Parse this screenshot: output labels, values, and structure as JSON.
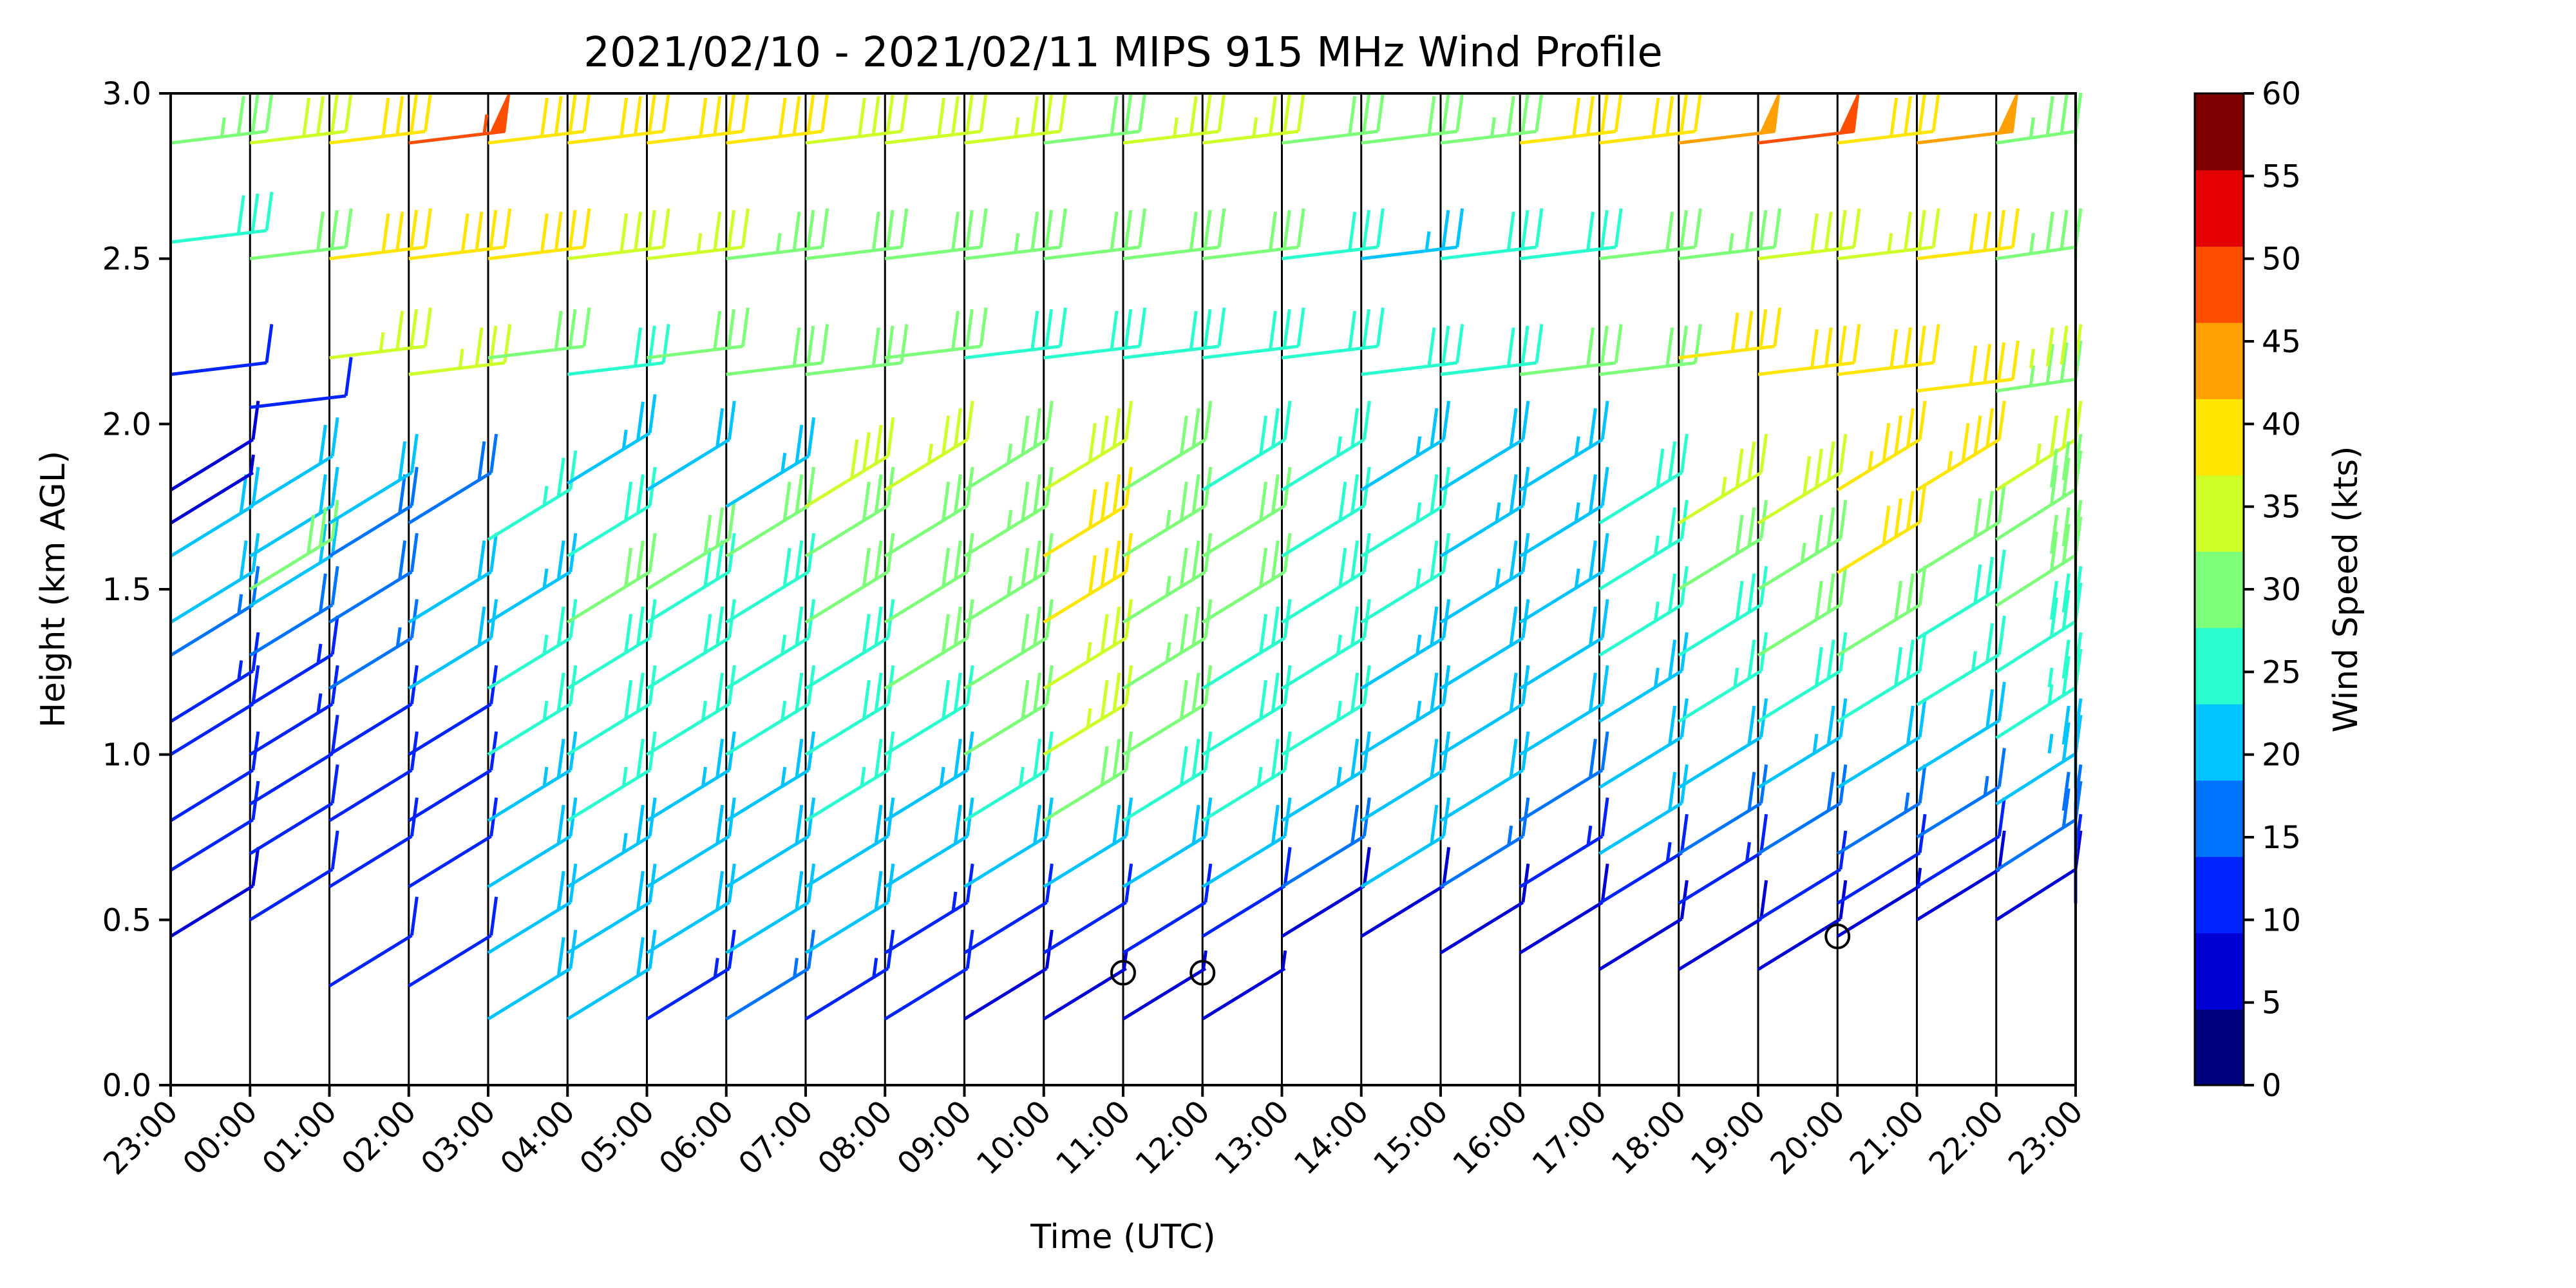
{
  "chart_data": {
    "type": "wind-barb-profile",
    "title": "2021/02/10 - 2021/02/11 MIPS 915 MHz Wind Profile",
    "xlabel": "Time (UTC)",
    "ylabel": "Height (km AGL)",
    "x_ticks": [
      "23:00",
      "00:00",
      "01:00",
      "02:00",
      "03:00",
      "04:00",
      "05:00",
      "06:00",
      "07:00",
      "08:00",
      "09:00",
      "10:00",
      "11:00",
      "12:00",
      "13:00",
      "14:00",
      "15:00",
      "16:00",
      "17:00",
      "18:00",
      "19:00",
      "20:00",
      "21:00",
      "22:00",
      "23:00"
    ],
    "y_ticks": [
      "0.0",
      "0.5",
      "1.0",
      "1.5",
      "2.0",
      "2.5",
      "3.0"
    ],
    "ylim": [
      0,
      3.0
    ],
    "grid": "vertical lines at each hour",
    "colorbar": {
      "label": "Wind Speed (kts)",
      "ticks": [
        "0",
        "5",
        "10",
        "15",
        "20",
        "25",
        "30",
        "35",
        "40",
        "45",
        "50",
        "55",
        "60"
      ],
      "range": [
        0,
        60
      ],
      "colors": [
        "#00007f",
        "#0000d4",
        "#0024ff",
        "#0074ff",
        "#00c4ff",
        "#29ffce",
        "#7dff7a",
        "#ceff29",
        "#ffe500",
        "#ff9f00",
        "#ff4e00",
        "#e40000",
        "#7f0000"
      ],
      "placement": "right"
    },
    "profiles": [
      {
        "time": "23:00",
        "levels": [
          [
            0.45,
            8
          ],
          [
            0.65,
            10
          ],
          [
            0.8,
            12
          ],
          [
            1.0,
            12
          ],
          [
            1.1,
            14
          ],
          [
            1.3,
            16
          ],
          [
            1.4,
            20
          ],
          [
            1.6,
            20
          ],
          [
            1.7,
            7
          ],
          [
            1.8,
            8
          ],
          [
            2.15,
            12
          ],
          [
            2.55,
            28
          ],
          [
            2.85,
            33
          ]
        ]
      },
      {
        "time": "00:00",
        "levels": [
          [
            0.5,
            10
          ],
          [
            0.7,
            12
          ],
          [
            0.85,
            12
          ],
          [
            1.0,
            14
          ],
          [
            1.15,
            14
          ],
          [
            1.3,
            18
          ],
          [
            1.45,
            20
          ],
          [
            1.6,
            20
          ],
          [
            1.75,
            22
          ],
          [
            1.5,
            30
          ],
          [
            2.05,
            12
          ],
          [
            2.5,
            30
          ],
          [
            2.85,
            38
          ]
        ]
      },
      {
        "time": "01:00",
        "levels": [
          [
            0.3,
            10
          ],
          [
            0.6,
            10
          ],
          [
            0.8,
            12
          ],
          [
            1.0,
            12
          ],
          [
            1.2,
            16
          ],
          [
            1.4,
            18
          ],
          [
            1.6,
            18
          ],
          [
            1.7,
            20
          ],
          [
            2.2,
            36
          ],
          [
            2.5,
            42
          ],
          [
            2.85,
            40
          ]
        ]
      },
      {
        "time": "02:00",
        "levels": [
          [
            0.3,
            10
          ],
          [
            0.6,
            12
          ],
          [
            0.8,
            12
          ],
          [
            1.0,
            12
          ],
          [
            1.2,
            20
          ],
          [
            1.4,
            20
          ],
          [
            1.7,
            18
          ],
          [
            2.15,
            36
          ],
          [
            2.5,
            42
          ],
          [
            2.85,
            54
          ]
        ]
      },
      {
        "time": "03:00",
        "levels": [
          [
            0.2,
            20
          ],
          [
            0.4,
            20
          ],
          [
            0.6,
            22
          ],
          [
            0.8,
            24
          ],
          [
            1.0,
            26
          ],
          [
            1.2,
            26
          ],
          [
            1.4,
            24
          ],
          [
            1.65,
            26
          ],
          [
            2.2,
            30
          ],
          [
            2.5,
            42
          ],
          [
            2.85,
            42
          ]
        ]
      },
      {
        "time": "04:00",
        "levels": [
          [
            0.2,
            20
          ],
          [
            0.4,
            22
          ],
          [
            0.6,
            24
          ],
          [
            0.8,
            26
          ],
          [
            1.0,
            28
          ],
          [
            1.2,
            28
          ],
          [
            1.4,
            30
          ],
          [
            1.6,
            28
          ],
          [
            1.82,
            24
          ],
          [
            2.15,
            28
          ],
          [
            2.5,
            38
          ],
          [
            2.85,
            42
          ]
        ]
      },
      {
        "time": "05:00",
        "levels": [
          [
            0.2,
            14
          ],
          [
            0.4,
            22
          ],
          [
            0.6,
            22
          ],
          [
            0.8,
            24
          ],
          [
            1.0,
            26
          ],
          [
            1.2,
            28
          ],
          [
            1.4,
            28
          ],
          [
            1.5,
            30
          ],
          [
            1.8,
            22
          ],
          [
            2.2,
            30
          ],
          [
            2.5,
            36
          ],
          [
            2.85,
            42
          ]
        ]
      },
      {
        "time": "06:00",
        "levels": [
          [
            0.2,
            16
          ],
          [
            0.4,
            20
          ],
          [
            0.6,
            22
          ],
          [
            0.8,
            24
          ],
          [
            1.0,
            26
          ],
          [
            1.2,
            26
          ],
          [
            1.4,
            28
          ],
          [
            1.6,
            30
          ],
          [
            1.75,
            24
          ],
          [
            2.15,
            32
          ],
          [
            2.5,
            34
          ],
          [
            2.85,
            42
          ]
        ]
      },
      {
        "time": "07:00",
        "levels": [
          [
            0.2,
            14
          ],
          [
            0.4,
            20
          ],
          [
            0.6,
            22
          ],
          [
            0.8,
            26
          ],
          [
            1.0,
            28
          ],
          [
            1.2,
            28
          ],
          [
            1.4,
            30
          ],
          [
            1.6,
            32
          ],
          [
            1.75,
            38
          ],
          [
            2.15,
            32
          ],
          [
            2.5,
            32
          ],
          [
            2.85,
            38
          ]
        ]
      },
      {
        "time": "08:00",
        "levels": [
          [
            0.2,
            10
          ],
          [
            0.4,
            14
          ],
          [
            0.6,
            20
          ],
          [
            0.8,
            24
          ],
          [
            1.0,
            28
          ],
          [
            1.2,
            30
          ],
          [
            1.4,
            32
          ],
          [
            1.6,
            32
          ],
          [
            1.8,
            36
          ],
          [
            2.2,
            30
          ],
          [
            2.5,
            30
          ],
          [
            2.85,
            38
          ]
        ]
      },
      {
        "time": "09:00",
        "levels": [
          [
            0.2,
            8
          ],
          [
            0.4,
            12
          ],
          [
            0.6,
            20
          ],
          [
            0.8,
            26
          ],
          [
            1.0,
            30
          ],
          [
            1.2,
            32
          ],
          [
            1.4,
            34
          ],
          [
            1.6,
            34
          ],
          [
            1.8,
            34
          ],
          [
            2.2,
            28
          ],
          [
            2.5,
            34
          ],
          [
            2.85,
            36
          ]
        ]
      },
      {
        "time": "10:00",
        "levels": [
          [
            0.2,
            6
          ],
          [
            0.4,
            10
          ],
          [
            0.6,
            20
          ],
          [
            0.8,
            30
          ],
          [
            1.0,
            36
          ],
          [
            1.2,
            36
          ],
          [
            1.4,
            40
          ],
          [
            1.6,
            42
          ],
          [
            1.8,
            38
          ],
          [
            2.2,
            28
          ],
          [
            2.5,
            30
          ],
          [
            2.85,
            30
          ]
        ]
      },
      {
        "time": "11:00",
        "levels": [
          [
            0.2,
            6
          ],
          [
            0.4,
            10
          ],
          [
            0.6,
            22
          ],
          [
            0.8,
            28
          ],
          [
            1.0,
            32
          ],
          [
            1.2,
            34
          ],
          [
            1.4,
            34
          ],
          [
            1.6,
            34
          ],
          [
            1.8,
            32
          ],
          [
            2.2,
            28
          ],
          [
            2.5,
            32
          ],
          [
            2.85,
            36
          ]
        ]
      },
      {
        "time": "12:00",
        "levels": [
          [
            0.2,
            6
          ],
          [
            0.45,
            12
          ],
          [
            0.6,
            22
          ],
          [
            0.8,
            26
          ],
          [
            1.0,
            28
          ],
          [
            1.2,
            28
          ],
          [
            1.4,
            30
          ],
          [
            1.6,
            30
          ],
          [
            1.8,
            28
          ],
          [
            2.2,
            28
          ],
          [
            2.5,
            30
          ],
          [
            2.85,
            36
          ]
        ]
      },
      {
        "time": "13:00",
        "levels": [
          [
            0.45,
            8
          ],
          [
            0.6,
            18
          ],
          [
            0.8,
            24
          ],
          [
            1.0,
            26
          ],
          [
            1.2,
            26
          ],
          [
            1.4,
            28
          ],
          [
            1.6,
            28
          ],
          [
            1.8,
            26
          ],
          [
            2.2,
            28
          ],
          [
            2.5,
            28
          ],
          [
            2.85,
            30
          ]
        ]
      },
      {
        "time": "14:00",
        "levels": [
          [
            0.45,
            8
          ],
          [
            0.6,
            20
          ],
          [
            0.8,
            22
          ],
          [
            1.0,
            24
          ],
          [
            1.2,
            24
          ],
          [
            1.4,
            26
          ],
          [
            1.6,
            26
          ],
          [
            1.8,
            24
          ],
          [
            2.15,
            28
          ],
          [
            2.5,
            24
          ],
          [
            2.85,
            30
          ]
        ]
      },
      {
        "time": "15:00",
        "levels": [
          [
            0.4,
            8
          ],
          [
            0.6,
            16
          ],
          [
            0.8,
            20
          ],
          [
            1.0,
            22
          ],
          [
            1.2,
            22
          ],
          [
            1.4,
            24
          ],
          [
            1.6,
            24
          ],
          [
            1.8,
            22
          ],
          [
            2.15,
            28
          ],
          [
            2.5,
            28
          ],
          [
            2.85,
            34
          ]
        ]
      },
      {
        "time": "16:00",
        "levels": [
          [
            0.4,
            8
          ],
          [
            0.6,
            14
          ],
          [
            0.8,
            18
          ],
          [
            1.0,
            20
          ],
          [
            1.2,
            22
          ],
          [
            1.4,
            24
          ],
          [
            1.6,
            24
          ],
          [
            1.8,
            24
          ],
          [
            2.15,
            30
          ],
          [
            2.5,
            28
          ],
          [
            2.85,
            40
          ]
        ]
      },
      {
        "time": "17:00",
        "levels": [
          [
            0.35,
            8
          ],
          [
            0.55,
            14
          ],
          [
            0.7,
            20
          ],
          [
            0.9,
            22
          ],
          [
            1.1,
            24
          ],
          [
            1.3,
            26
          ],
          [
            1.5,
            26
          ],
          [
            1.7,
            28
          ],
          [
            2.15,
            32
          ],
          [
            2.5,
            30
          ],
          [
            2.85,
            40
          ]
        ]
      },
      {
        "time": "18:00",
        "levels": [
          [
            0.35,
            8
          ],
          [
            0.55,
            14
          ],
          [
            0.7,
            18
          ],
          [
            0.9,
            22
          ],
          [
            1.1,
            26
          ],
          [
            1.3,
            28
          ],
          [
            1.5,
            32
          ],
          [
            1.7,
            36
          ],
          [
            2.2,
            40
          ],
          [
            2.5,
            34
          ],
          [
            2.85,
            48
          ]
        ]
      },
      {
        "time": "19:00",
        "levels": [
          [
            0.35,
            8
          ],
          [
            0.5,
            12
          ],
          [
            0.7,
            18
          ],
          [
            0.9,
            24
          ],
          [
            1.1,
            28
          ],
          [
            1.3,
            30
          ],
          [
            1.5,
            34
          ],
          [
            1.7,
            38
          ],
          [
            2.15,
            42
          ],
          [
            2.5,
            38
          ],
          [
            2.85,
            50
          ]
        ]
      },
      {
        "time": "20:00",
        "levels": [
          [
            0.45,
            6
          ],
          [
            0.55,
            10
          ],
          [
            0.7,
            16
          ],
          [
            0.9,
            22
          ],
          [
            1.1,
            28
          ],
          [
            1.3,
            30
          ],
          [
            1.55,
            42
          ],
          [
            1.8,
            44
          ],
          [
            2.15,
            42
          ],
          [
            2.5,
            36
          ],
          [
            2.85,
            42
          ]
        ]
      },
      {
        "time": "21:00",
        "levels": [
          [
            0.5,
            8
          ],
          [
            0.6,
            12
          ],
          [
            0.75,
            16
          ],
          [
            0.95,
            22
          ],
          [
            1.15,
            26
          ],
          [
            1.35,
            28
          ],
          [
            1.55,
            32
          ],
          [
            1.8,
            44
          ],
          [
            2.1,
            42
          ],
          [
            2.5,
            40
          ],
          [
            2.85,
            48
          ]
        ]
      },
      {
        "time": "22:00",
        "levels": [
          [
            0.5,
            8
          ],
          [
            0.65,
            18
          ],
          [
            0.85,
            22
          ],
          [
            1.05,
            26
          ],
          [
            1.25,
            28
          ],
          [
            1.45,
            30
          ],
          [
            1.65,
            32
          ],
          [
            1.8,
            36
          ],
          [
            2.1,
            34
          ],
          [
            2.5,
            32
          ],
          [
            2.85,
            34
          ]
        ]
      },
      {
        "time": "23:00",
        "levels": [
          [
            0.55,
            10
          ],
          [
            0.7,
            18
          ],
          [
            0.9,
            24
          ],
          [
            1.1,
            26
          ],
          [
            1.3,
            28
          ],
          [
            1.5,
            30
          ],
          [
            1.7,
            32
          ],
          [
            1.8,
            36
          ],
          [
            2.15,
            36
          ],
          [
            2.5,
            34
          ],
          [
            2.85,
            34
          ]
        ]
      }
    ],
    "calm_markers": [
      [
        "11:00",
        0.34
      ],
      [
        "12:00",
        0.34
      ],
      [
        "20:00",
        0.45
      ]
    ]
  }
}
